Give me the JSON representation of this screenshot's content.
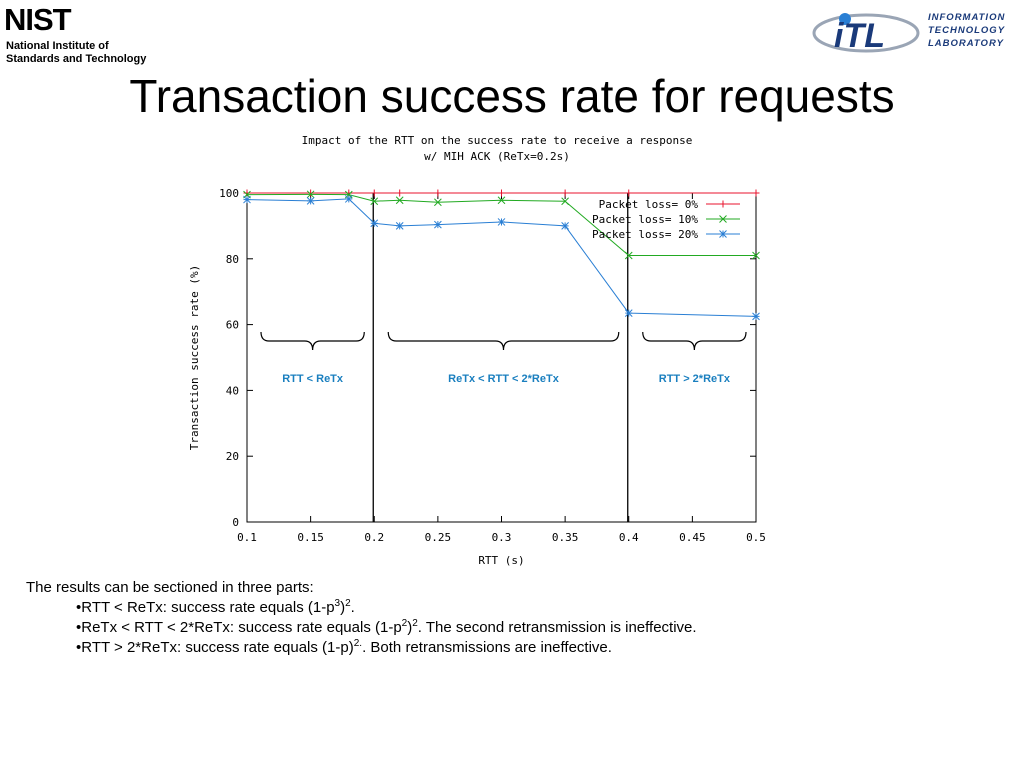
{
  "header": {
    "nist_logo": {
      "word": "NIST",
      "line1": "National Institute of",
      "line2": "Standards and Technology"
    },
    "itl_logo": {
      "mark": "iTL",
      "line1": "INFORMATION",
      "line2": "TECHNOLOGY",
      "line3": "LABORATORY"
    }
  },
  "title": "Transaction success rate for requests",
  "colors": {
    "loss0": "#e8132c",
    "loss10": "#22aa22",
    "loss20": "#2a7fd4",
    "annotation": "#1a7fbf"
  },
  "chart_data": {
    "type": "line",
    "title": [
      "Impact of the RTT on the success rate to receive a response",
      "w/ MIH ACK (ReTx=0.2s)"
    ],
    "xlabel": "RTT (s)",
    "ylabel": "Transaction success rate (%)",
    "xlim": [
      0.1,
      0.5
    ],
    "ylim": [
      0,
      100
    ],
    "xticks": [
      "0.1",
      "0.15",
      "0.2",
      "0.25",
      "0.3",
      "0.35",
      "0.4",
      "0.45",
      "0.5"
    ],
    "yticks": [
      "0",
      "20",
      "40",
      "60",
      "80",
      "100"
    ],
    "legend_position": "top-right",
    "grid": false,
    "series": [
      {
        "name": "Packet loss= 0%",
        "marker": "plus",
        "color": "#e8132c",
        "x": [
          0.1,
          0.15,
          0.18,
          0.2,
          0.22,
          0.25,
          0.3,
          0.35,
          0.4,
          0.5
        ],
        "y": [
          100,
          100,
          100,
          100,
          100,
          100,
          100,
          100,
          100,
          100
        ]
      },
      {
        "name": "Packet loss= 10%",
        "marker": "x",
        "color": "#22aa22",
        "x": [
          0.1,
          0.15,
          0.18,
          0.2,
          0.22,
          0.25,
          0.3,
          0.35,
          0.4,
          0.5
        ],
        "y": [
          99.5,
          99.6,
          99.5,
          97.5,
          97.8,
          97.2,
          97.8,
          97.5,
          81,
          81
        ]
      },
      {
        "name": "Packet loss= 20%",
        "marker": "star",
        "color": "#2a7fd4",
        "x": [
          0.1,
          0.15,
          0.18,
          0.2,
          0.22,
          0.25,
          0.3,
          0.35,
          0.4,
          0.5
        ],
        "y": [
          98,
          97.6,
          98.2,
          90.8,
          90,
          90.4,
          91.2,
          90,
          63.5,
          62.5
        ]
      }
    ],
    "annotations": {
      "dividers_x": [
        0.2,
        0.4
      ],
      "regions": [
        {
          "label": "RTT < ReTx",
          "x_start": 0.1,
          "x_end": 0.2
        },
        {
          "label": "ReTx < RTT < 2*ReTx",
          "x_start": 0.2,
          "x_end": 0.4
        },
        {
          "label": "RTT > 2*ReTx",
          "x_start": 0.4,
          "x_end": 0.5
        }
      ]
    }
  },
  "notes": {
    "intro": "The results can be sectioned in three parts:",
    "b1": {
      "a": "•RTT < ReTx: success rate equals (1-p",
      "sup1": "3",
      "b": ")",
      "sup2": "2",
      "c": "."
    },
    "b2": {
      "a": "•ReTx < RTT < 2*ReTx: success rate equals (1-p",
      "sup1": "2",
      "b": ")",
      "sup2": "2",
      "c": ". The second retransmission is ineffective."
    },
    "b3": {
      "a": "•RTT > 2*ReTx: success rate equals (1-p)",
      "sup1": "2.",
      "b": ". Both retransmissions are ineffective."
    }
  }
}
